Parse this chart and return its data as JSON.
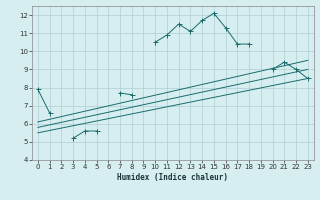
{
  "xlabel": "Humidex (Indice chaleur)",
  "bg_color": "#d6eef0",
  "grid_color": "#aecfd2",
  "line_color": "#1a6b6b",
  "line1_x": [
    0,
    1,
    2,
    3,
    4,
    5,
    6,
    7,
    8,
    9,
    10,
    11,
    12,
    13,
    14,
    15,
    16,
    17,
    18,
    19,
    20,
    21,
    22,
    23
  ],
  "line1_y": [
    7.9,
    6.6,
    null,
    5.2,
    5.6,
    5.6,
    null,
    7.7,
    7.6,
    null,
    10.5,
    10.9,
    11.5,
    11.1,
    11.7,
    12.1,
    11.3,
    10.4,
    10.4,
    null,
    9.0,
    9.4,
    9.0,
    8.5
  ],
  "line2_x": [
    0,
    23
  ],
  "line2_y": [
    6.1,
    9.5
  ],
  "line3_x": [
    0,
    23
  ],
  "line3_y": [
    5.8,
    9.0
  ],
  "line4_x": [
    0,
    23
  ],
  "line4_y": [
    5.5,
    8.5
  ],
  "xlim": [
    -0.5,
    23.5
  ],
  "ylim": [
    4,
    12.5
  ],
  "yticks": [
    4,
    5,
    6,
    7,
    8,
    9,
    10,
    11,
    12
  ],
  "xticks": [
    0,
    1,
    2,
    3,
    4,
    5,
    6,
    7,
    8,
    9,
    10,
    11,
    12,
    13,
    14,
    15,
    16,
    17,
    18,
    19,
    20,
    21,
    22,
    23
  ]
}
